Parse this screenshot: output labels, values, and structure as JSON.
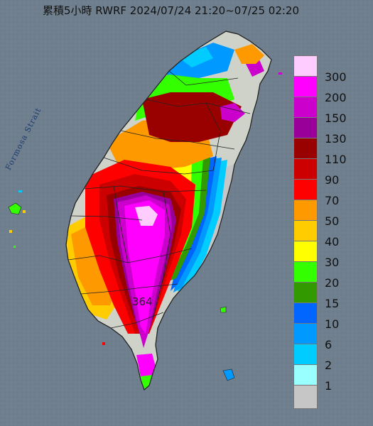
{
  "title": "累積5小時 RWRF 2024/07/24 21:20~07/25 02:20",
  "strait_label": "Formosa Strait",
  "max_value_label": "364",
  "legend": [
    {
      "label": "300",
      "color": "#ffccff"
    },
    {
      "label": "200",
      "color": "#ff00ff"
    },
    {
      "label": "150",
      "color": "#cc00cc"
    },
    {
      "label": "130",
      "color": "#990099"
    },
    {
      "label": "110",
      "color": "#990000"
    },
    {
      "label": "90",
      "color": "#cc0000"
    },
    {
      "label": "70",
      "color": "#ff0000"
    },
    {
      "label": "50",
      "color": "#ff9900"
    },
    {
      "label": "40",
      "color": "#ffcc00"
    },
    {
      "label": "30",
      "color": "#ffff00"
    },
    {
      "label": "20",
      "color": "#33ff00"
    },
    {
      "label": "15",
      "color": "#339900"
    },
    {
      "label": "10",
      "color": "#0066ff"
    },
    {
      "label": "6",
      "color": "#0099ff"
    },
    {
      "label": "2",
      "color": "#00ccff"
    },
    {
      "label": "1",
      "color": "#99ffff"
    },
    {
      "label": "",
      "color": "#c6c6c6"
    }
  ],
  "colors": {
    "sea": "#6f7f8e",
    "land_base": "#cfd2c8",
    "county_border": "#222222"
  }
}
